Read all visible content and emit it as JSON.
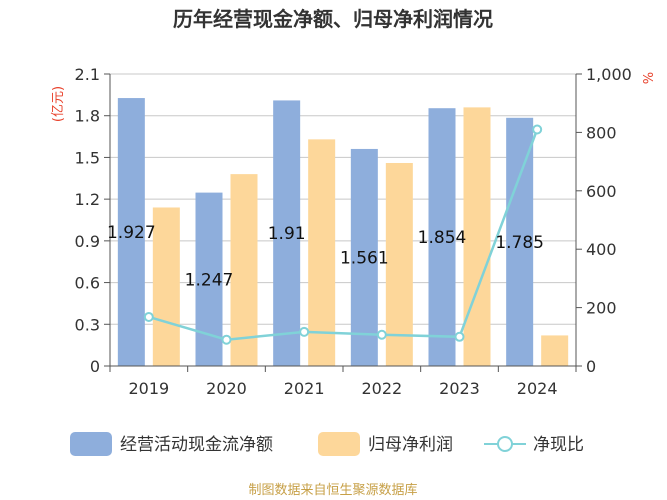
{
  "chart_data": {
    "type": "bar",
    "title": "历年经营现金净额、归母净利润情况",
    "categories": [
      "2019",
      "2020",
      "2021",
      "2022",
      "2023",
      "2024"
    ],
    "series": [
      {
        "name": "经营活动现金流净额",
        "type": "bar",
        "axis": "left",
        "color": "#8eaedc",
        "values": [
          1.927,
          1.247,
          1.91,
          1.561,
          1.854,
          1.785
        ],
        "labels": [
          "1.927",
          "1.247",
          "1.91",
          "1.561",
          "1.854",
          "1.785"
        ]
      },
      {
        "name": "归母净利润",
        "type": "bar",
        "axis": "left",
        "color": "#fdd79a",
        "values": [
          1.14,
          1.38,
          1.63,
          1.46,
          1.86,
          0.22
        ]
      },
      {
        "name": "净现比",
        "type": "line",
        "axis": "right",
        "color": "#80d2d8",
        "values": [
          168,
          90,
          117,
          107,
          100,
          810
        ]
      }
    ],
    "y_left": {
      "unit": "(亿元)",
      "min": 0,
      "max": 2.1,
      "ticks": [
        "0",
        "0.3",
        "0.6",
        "0.9",
        "1.2",
        "1.5",
        "1.8",
        "2.1"
      ]
    },
    "y_right": {
      "unit": "%",
      "min": 0,
      "max": 1000,
      "ticks": [
        "0",
        "200",
        "400",
        "600",
        "800",
        "1,000"
      ]
    },
    "legend_position": "bottom",
    "grid": true
  },
  "source": "制图数据来自恒生聚源数据库"
}
